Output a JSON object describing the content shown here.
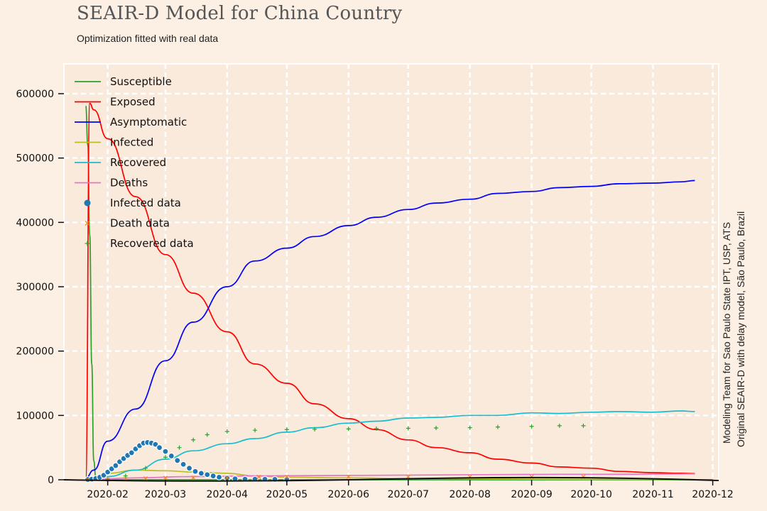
{
  "header": {
    "title": "SEAIR-D Model for China Country",
    "subtitle": "Optimization fitted with real data"
  },
  "credits": {
    "line1": "Modeling Team for Sao Paulo State IPT, USP, ATS",
    "line2": "Original SEAIR-D with delay model, São Paulo, Brazil"
  },
  "colors": {
    "background": "#fcf0e4",
    "plot_area": "#faeadc",
    "grid": "#ffffff"
  },
  "chart_data": {
    "type": "line",
    "title": "SEAIR-D Model for China Country",
    "subtitle": "Optimization fitted with real data",
    "xlabel": "",
    "ylabel": "",
    "x_type": "date",
    "xlim": [
      "2020-01-10",
      "2020-12-04"
    ],
    "ylim": [
      0,
      600000
    ],
    "y_ticks": [
      0,
      100000,
      200000,
      300000,
      400000,
      500000,
      600000
    ],
    "y_tick_labels": [
      "0",
      "100000",
      "200000",
      "300000",
      "400000",
      "500000",
      "600000"
    ],
    "x_ticks": [
      "2020-02-01",
      "2020-03-01",
      "2020-04-01",
      "2020-05-01",
      "2020-06-01",
      "2020-07-01",
      "2020-08-01",
      "2020-09-01",
      "2020-10-01",
      "2020-11-01",
      "2020-12-01"
    ],
    "x_tick_labels": [
      "2020-02",
      "2020-03",
      "2020-04",
      "2020-05",
      "2020-06",
      "2020-07",
      "2020-08",
      "2020-09",
      "2020-10",
      "2020-11",
      "2020-12"
    ],
    "grid": true,
    "legend_position": "top-left",
    "series": [
      {
        "name": "Susceptible",
        "kind": "line",
        "color": "#2ca02c",
        "x": [
          "2020-01-21",
          "2020-01-22",
          "2020-01-23",
          "2020-01-24",
          "2020-01-25",
          "2020-01-26",
          "2020-01-28",
          "2020-02-01",
          "2020-12-01"
        ],
        "y": [
          581000,
          520000,
          380000,
          180000,
          30000,
          5000,
          0,
          0,
          0
        ]
      },
      {
        "name": "Exposed",
        "kind": "line",
        "color": "#ff0000",
        "x": [
          "2020-01-21",
          "2020-01-23",
          "2020-01-25",
          "2020-02-01",
          "2020-02-15",
          "2020-03-01",
          "2020-03-15",
          "2020-04-01",
          "2020-04-15",
          "2020-05-01",
          "2020-05-15",
          "2020-06-01",
          "2020-06-15",
          "2020-07-01",
          "2020-07-15",
          "2020-08-01",
          "2020-08-15",
          "2020-09-01",
          "2020-09-15",
          "2020-10-01",
          "2020-10-15",
          "2020-11-01",
          "2020-11-15",
          "2020-11-22"
        ],
        "y": [
          3000,
          585000,
          575000,
          530000,
          440000,
          350000,
          290000,
          230000,
          180000,
          150000,
          118000,
          95000,
          78000,
          62000,
          50000,
          42000,
          32000,
          26000,
          20000,
          18000,
          13000,
          11000,
          10000,
          9500
        ]
      },
      {
        "name": "Asymptomatic",
        "kind": "line",
        "color": "#0000ff",
        "x": [
          "2020-01-21",
          "2020-01-25",
          "2020-02-01",
          "2020-02-15",
          "2020-03-01",
          "2020-03-15",
          "2020-04-01",
          "2020-04-15",
          "2020-05-01",
          "2020-05-15",
          "2020-06-01",
          "2020-06-15",
          "2020-07-01",
          "2020-07-15",
          "2020-08-01",
          "2020-08-15",
          "2020-09-01",
          "2020-09-15",
          "2020-10-01",
          "2020-10-15",
          "2020-11-01",
          "2020-11-15",
          "2020-11-22"
        ],
        "y": [
          3000,
          15000,
          60000,
          110000,
          185000,
          245000,
          300000,
          340000,
          360000,
          378000,
          395000,
          408000,
          420000,
          430000,
          436000,
          445000,
          448000,
          454000,
          456000,
          460000,
          461000,
          463000,
          465000
        ]
      },
      {
        "name": "Infected",
        "kind": "line",
        "color": "#bcbd22",
        "x": [
          "2020-01-21",
          "2020-02-01",
          "2020-02-15",
          "2020-03-01",
          "2020-03-15",
          "2020-04-01",
          "2020-04-15",
          "2020-05-01",
          "2020-06-01",
          "2020-07-01",
          "2020-08-01",
          "2020-09-01",
          "2020-10-01",
          "2020-11-01",
          "2020-11-22"
        ],
        "y": [
          0,
          10000,
          15000,
          14000,
          12000,
          10000,
          6000,
          4000,
          3000,
          2000,
          1500,
          1000,
          700,
          500,
          400
        ]
      },
      {
        "name": "Recovered",
        "kind": "line",
        "color": "#17becf",
        "x": [
          "2020-01-21",
          "2020-02-01",
          "2020-02-15",
          "2020-03-01",
          "2020-03-15",
          "2020-04-01",
          "2020-04-15",
          "2020-05-01",
          "2020-05-15",
          "2020-06-01",
          "2020-06-15",
          "2020-07-01",
          "2020-07-15",
          "2020-08-01",
          "2020-08-15",
          "2020-09-01",
          "2020-09-15",
          "2020-10-01",
          "2020-10-15",
          "2020-11-01",
          "2020-11-15",
          "2020-11-22"
        ],
        "y": [
          0,
          5000,
          15000,
          32000,
          45000,
          56000,
          64000,
          74000,
          81000,
          88000,
          91000,
          96000,
          97000,
          100000,
          100000,
          104000,
          103000,
          105000,
          106000,
          105000,
          107000,
          106000
        ]
      },
      {
        "name": "Deaths",
        "kind": "line",
        "color": "#e377c2",
        "x": [
          "2020-01-21",
          "2020-02-15",
          "2020-03-15",
          "2020-04-15",
          "2020-05-15",
          "2020-06-15",
          "2020-07-15",
          "2020-08-15",
          "2020-09-15",
          "2020-10-15",
          "2020-11-15",
          "2020-11-22"
        ],
        "y": [
          0,
          3000,
          5000,
          6000,
          6500,
          7000,
          7500,
          8000,
          8500,
          8500,
          9000,
          9000
        ]
      },
      {
        "name": "Infected data",
        "kind": "scatter",
        "marker": "circle",
        "color": "#1f77b4",
        "x": [
          "2020-01-22",
          "2020-01-24",
          "2020-01-26",
          "2020-01-28",
          "2020-01-30",
          "2020-02-01",
          "2020-02-03",
          "2020-02-05",
          "2020-02-07",
          "2020-02-09",
          "2020-02-11",
          "2020-02-13",
          "2020-02-15",
          "2020-02-17",
          "2020-02-19",
          "2020-02-21",
          "2020-02-23",
          "2020-02-25",
          "2020-02-27",
          "2020-03-01",
          "2020-03-04",
          "2020-03-07",
          "2020-03-10",
          "2020-03-13",
          "2020-03-16",
          "2020-03-19",
          "2020-03-22",
          "2020-03-25",
          "2020-03-28",
          "2020-04-01",
          "2020-04-05",
          "2020-04-10",
          "2020-04-15",
          "2020-04-20",
          "2020-04-25",
          "2020-05-01"
        ],
        "y": [
          500,
          1000,
          2000,
          4000,
          7000,
          12000,
          17000,
          22000,
          28000,
          33000,
          38000,
          42000,
          48000,
          53000,
          57000,
          58000,
          57000,
          55000,
          50000,
          44000,
          37000,
          30000,
          24000,
          18000,
          13000,
          10000,
          8000,
          6000,
          4000,
          2500,
          1500,
          1000,
          900,
          800,
          700,
          600
        ]
      },
      {
        "name": "Death data",
        "kind": "scatter",
        "marker": "x",
        "color": "#ff7f0e",
        "x": [
          "2020-01-22",
          "2020-02-01",
          "2020-02-10",
          "2020-02-20",
          "2020-03-01",
          "2020-03-15",
          "2020-04-01",
          "2020-04-17",
          "2020-05-01",
          "2020-06-01",
          "2020-07-01",
          "2020-08-01",
          "2020-09-01",
          "2020-09-27"
        ],
        "y": [
          20,
          300,
          1000,
          2200,
          3000,
          3200,
          3300,
          4600,
          4600,
          4600,
          4600,
          4700,
          4700,
          4700
        ]
      },
      {
        "name": "Recovered data",
        "kind": "scatter",
        "marker": "plus",
        "color": "#2ca02c",
        "x": [
          "2020-01-22",
          "2020-02-01",
          "2020-02-10",
          "2020-02-20",
          "2020-03-01",
          "2020-03-08",
          "2020-03-15",
          "2020-03-22",
          "2020-04-01",
          "2020-04-15",
          "2020-05-01",
          "2020-05-15",
          "2020-06-01",
          "2020-06-15",
          "2020-07-01",
          "2020-07-15",
          "2020-08-01",
          "2020-08-15",
          "2020-09-01",
          "2020-09-15",
          "2020-09-27"
        ],
        "y": [
          30,
          500,
          6000,
          18000,
          35000,
          50000,
          62000,
          70000,
          75000,
          77000,
          78000,
          78500,
          79000,
          79500,
          80000,
          80500,
          81000,
          82000,
          83000,
          84000,
          84000
        ]
      }
    ]
  }
}
